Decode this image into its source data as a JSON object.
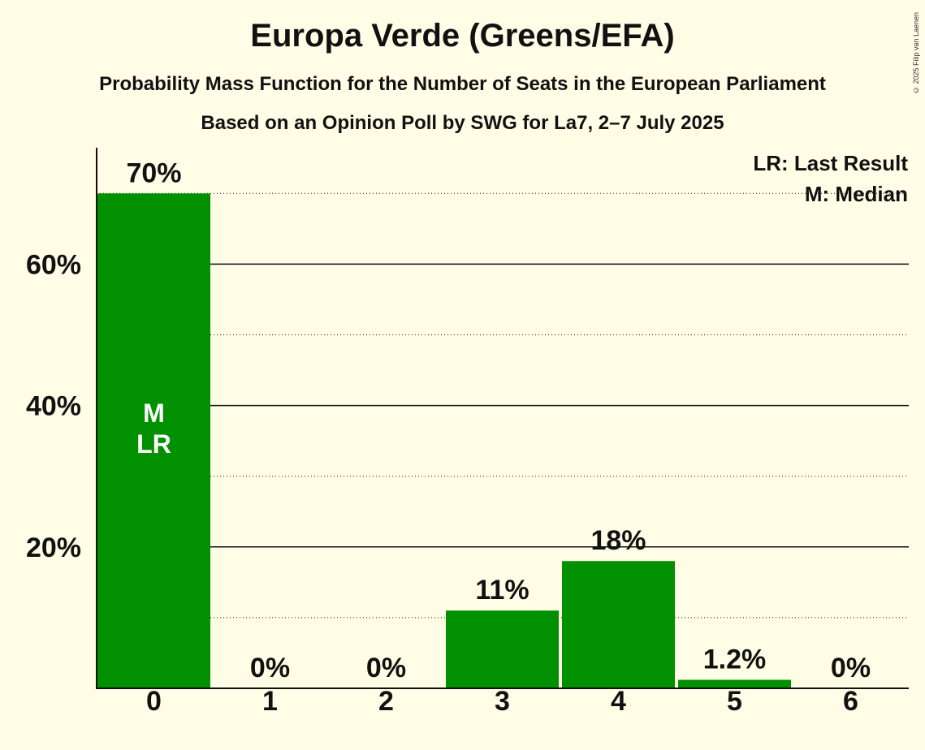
{
  "chart_data": {
    "type": "bar",
    "title": "Europa Verde (Greens/EFA)",
    "subtitle": "Probability Mass Function for the Number of Seats in the European Parliament",
    "subtitle2": "Based on an Opinion Poll by SWG for La7, 2–7 July 2025",
    "categories": [
      "0",
      "1",
      "2",
      "3",
      "4",
      "5",
      "6"
    ],
    "values": [
      70,
      0,
      0,
      11,
      18,
      1.2,
      0
    ],
    "value_labels": [
      "70%",
      "0%",
      "0%",
      "11%",
      "18%",
      "1.2%",
      "0%"
    ],
    "yticks": [
      20,
      40,
      60
    ],
    "ytick_labels": [
      "20%",
      "40%",
      "60%"
    ],
    "dotted_gridlines": [
      10,
      30,
      50,
      70
    ],
    "ylim": [
      0,
      76
    ],
    "xlabel": "",
    "ylabel": "",
    "bar_inner_labels": {
      "index": 0,
      "lines": [
        "M",
        "LR"
      ]
    },
    "legend": [
      "LR: Last Result",
      "M: Median"
    ],
    "copyright": "© 2025 Filip van Laenen",
    "colors": {
      "bar": "#009000",
      "background": "#FFFDE6",
      "text": "#111111",
      "inner_label": "#FFFFFF"
    }
  }
}
